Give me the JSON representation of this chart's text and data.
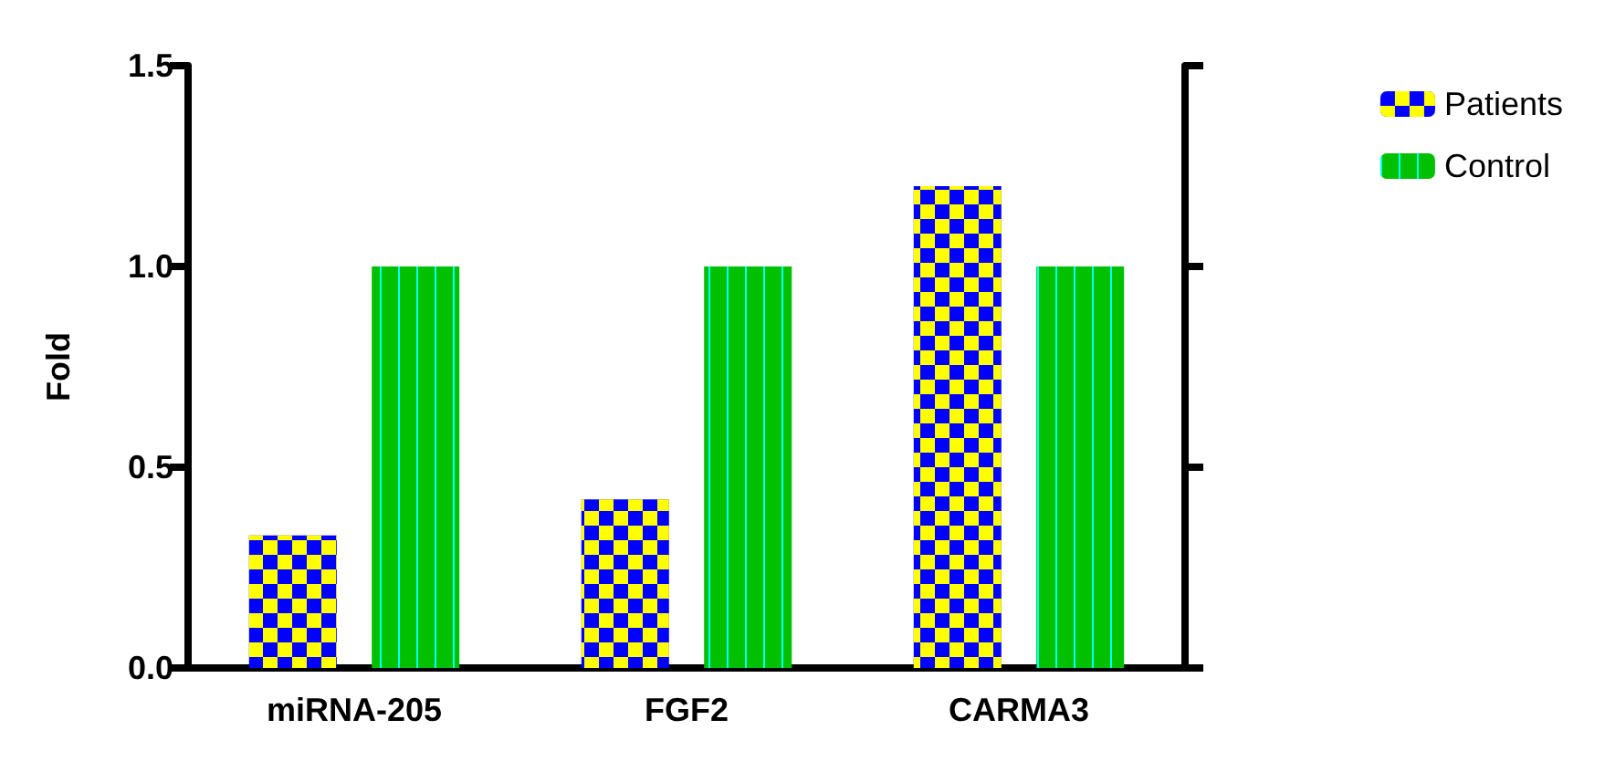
{
  "chart_data": {
    "type": "bar",
    "ylabel": "Fold",
    "categories": [
      "miRNA-205",
      "FGF2",
      "CARMA3"
    ],
    "series": [
      {
        "name": "Patients",
        "color": "#0000ff",
        "values": [
          0.33,
          0.42,
          1.2
        ]
      },
      {
        "name": "Control",
        "color": "#00c000",
        "values": [
          1.0,
          1.0,
          1.0
        ]
      }
    ],
    "ylim": [
      0,
      1.5
    ],
    "yticks": [
      {
        "value": 0,
        "label": "0.0"
      },
      {
        "value": 0.5,
        "label": "0.5"
      },
      {
        "value": 1,
        "label": "1.0"
      },
      {
        "value": 1.5,
        "label": "1.5"
      }
    ],
    "grid": false,
    "legend": "top right"
  }
}
